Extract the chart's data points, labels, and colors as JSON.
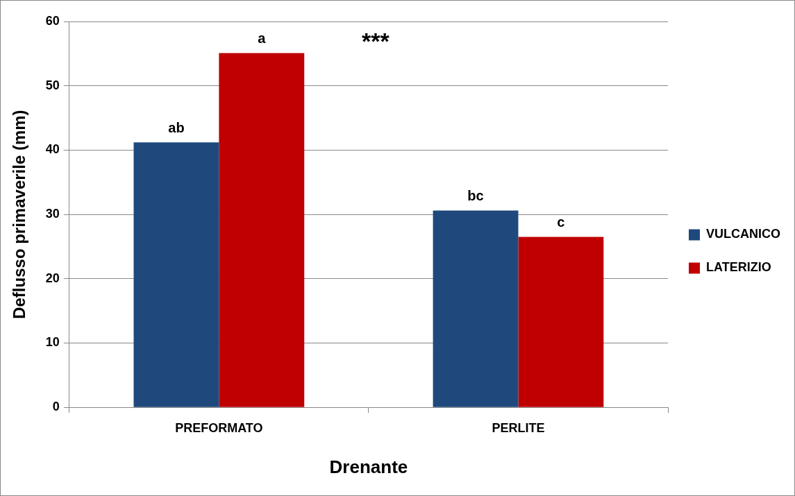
{
  "chart_data": {
    "type": "bar",
    "xlabel": "Drenante",
    "ylabel": "Deflusso primaverile (mm)",
    "categories": [
      "PREFORMATO",
      "PERLITE"
    ],
    "series": [
      {
        "name": "VULCANICO",
        "color": "#1f497d",
        "values": [
          41.2,
          30.6
        ]
      },
      {
        "name": "LATERIZIO",
        "color": "#c00000",
        "values": [
          55.1,
          26.5
        ]
      }
    ],
    "ylim": [
      0,
      60
    ],
    "yticks": [
      0,
      10,
      20,
      30,
      40,
      50,
      60
    ],
    "grid": "y",
    "legend": "right",
    "annotations": [
      {
        "text": "ab",
        "x": "PREFORMATO",
        "y": 41.2
      },
      {
        "text": "a",
        "x": "PREFORMATO",
        "y": 55.1
      },
      {
        "text": "bc",
        "x": "PERLITE",
        "y": 30.6
      },
      {
        "text": "c",
        "x": "PERLITE",
        "y": 26.5
      },
      "***"
    ]
  }
}
